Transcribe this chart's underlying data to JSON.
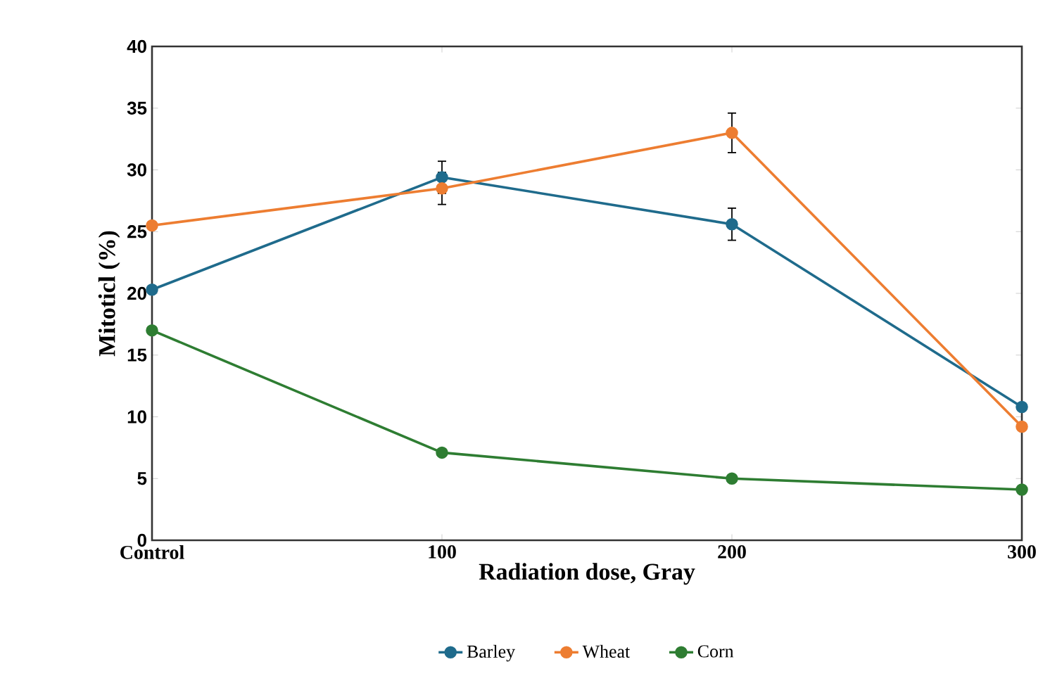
{
  "chart_data": {
    "type": "line",
    "xlabel": "Radiation dose, Gray",
    "ylabel": "Mitoticl (%)",
    "categories": [
      "Control",
      "100",
      "200",
      "300"
    ],
    "series": [
      {
        "name": "Barley",
        "color": "#1f6b8c",
        "values": [
          20.3,
          29.4,
          25.6,
          10.8
        ],
        "errors": [
          null,
          1.3,
          1.3,
          null
        ]
      },
      {
        "name": "Wheat",
        "color": "#ed7d31",
        "values": [
          25.5,
          28.5,
          33.0,
          9.2
        ],
        "errors": [
          null,
          1.3,
          1.6,
          null
        ]
      },
      {
        "name": "Corn",
        "color": "#2e7d32",
        "values": [
          17.0,
          7.1,
          5.0,
          4.1
        ]
      }
    ],
    "ylim": [
      0,
      40
    ],
    "yticks": [
      0,
      5,
      10,
      15,
      20,
      25,
      30,
      35,
      40
    ],
    "marker": "circle",
    "line_style": "solid",
    "grid": false,
    "legend": "bottom"
  }
}
